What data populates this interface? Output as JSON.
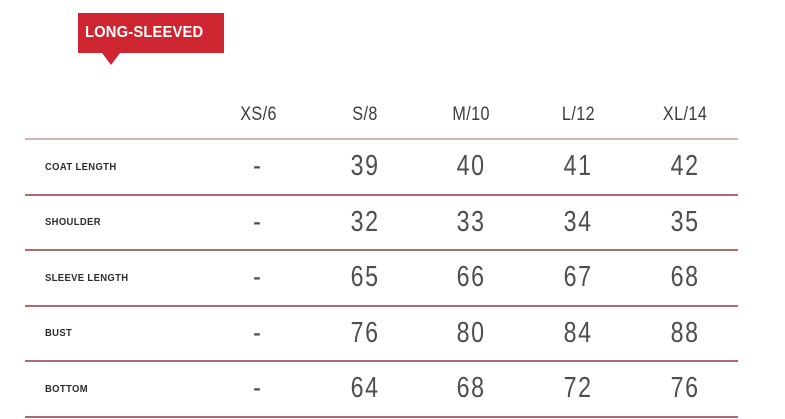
{
  "badge": {
    "label": "LONG-SLEEVED"
  },
  "chart_data": {
    "type": "table",
    "title": "LONG-SLEEVED",
    "columns": [
      "XS/6",
      "S/8",
      "M/10",
      "L/12",
      "XL/14"
    ],
    "rows": [
      {
        "label": "COAT LENGTH",
        "values": [
          "-",
          "39",
          "40",
          "41",
          "42"
        ]
      },
      {
        "label": "SHOULDER",
        "values": [
          "-",
          "32",
          "33",
          "34",
          "35"
        ]
      },
      {
        "label": "SLEEVE LENGTH",
        "values": [
          "-",
          "65",
          "66",
          "67",
          "68"
        ]
      },
      {
        "label": "BUST",
        "values": [
          "-",
          "76",
          "80",
          "84",
          "88"
        ]
      },
      {
        "label": "BOTTOM",
        "values": [
          "-",
          "64",
          "68",
          "72",
          "76"
        ]
      }
    ]
  },
  "theme": {
    "badge_red": "#cd2630",
    "badge_text": "#ffffff",
    "rule_color": "#ae6b6d",
    "header_rule_color": "#d8b0b0",
    "value_color": "#4e4e4e",
    "label_color": "#2d2d2d"
  }
}
